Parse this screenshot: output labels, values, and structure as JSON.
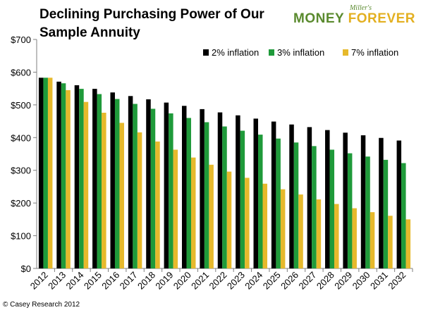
{
  "title_line1": "Declining Purchasing Power of Our",
  "title_line2": "Sample Annuity",
  "logo": {
    "small": "Miller's",
    "word1": "MONEY",
    "word2": "FOREVER"
  },
  "copyright": "© Casey Research 2012",
  "colors": {
    "s1": "#000000",
    "s2": "#1f9a3a",
    "s3": "#e6b92c",
    "axis": "#7f7f7f"
  },
  "chart_data": {
    "type": "bar",
    "title": "Declining Purchasing Power of Our Sample Annuity",
    "categories": [
      "2012",
      "2013",
      "2014",
      "2015",
      "2016",
      "2017",
      "2018",
      "2019",
      "2020",
      "2021",
      "2022",
      "2023",
      "2024",
      "2025",
      "2026",
      "2027",
      "2028",
      "2029",
      "2030",
      "2031",
      "2032"
    ],
    "series": [
      {
        "name": "2% inflation",
        "values": [
          583,
          571,
          560,
          549,
          538,
          527,
          517,
          507,
          497,
          487,
          477,
          468,
          458,
          449,
          440,
          432,
          423,
          415,
          407,
          399,
          391
        ]
      },
      {
        "name": "3% inflation",
        "values": [
          583,
          566,
          549,
          533,
          518,
          503,
          488,
          474,
          460,
          447,
          434,
          421,
          409,
          397,
          385,
          374,
          363,
          352,
          342,
          332,
          322
        ]
      },
      {
        "name": "7% inflation",
        "values": [
          583,
          545,
          509,
          476,
          445,
          416,
          388,
          363,
          339,
          317,
          296,
          277,
          259,
          242,
          226,
          211,
          197,
          184,
          172,
          161,
          150
        ]
      }
    ],
    "ylim": [
      0,
      700
    ],
    "yticks": [
      0,
      100,
      200,
      300,
      400,
      500,
      600,
      700
    ],
    "ytick_labels": [
      "$0",
      "$100",
      "$200",
      "$300",
      "$400",
      "$500",
      "$600",
      "$700"
    ],
    "legend_position": "top-right",
    "grid": false
  }
}
